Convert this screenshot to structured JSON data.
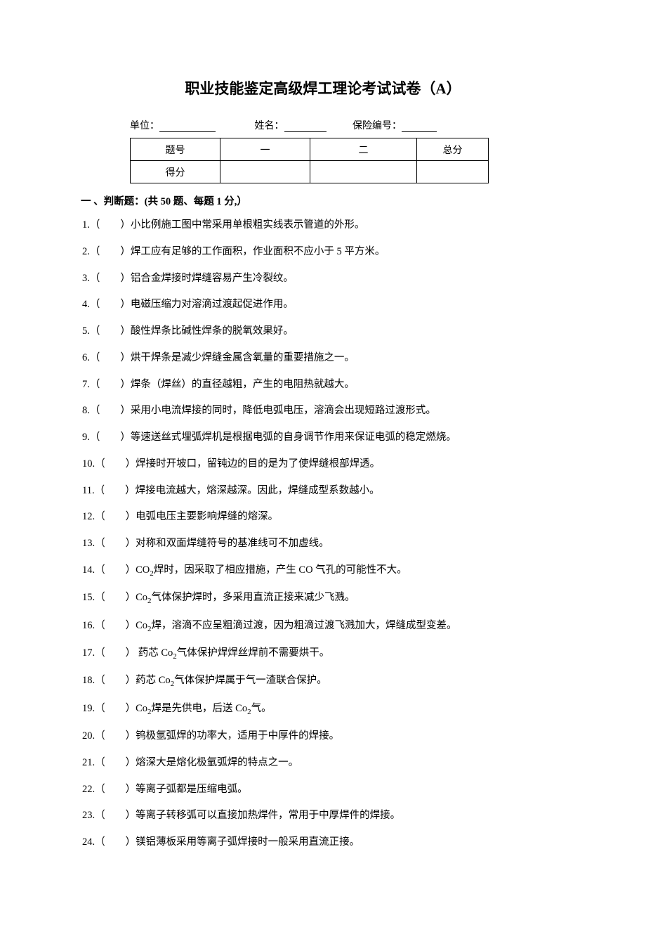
{
  "title": "职业技能鉴定高级焊工理论考试试卷（A）",
  "info": {
    "unit_label": "单位：",
    "name_label": "姓名：",
    "code_label": "保险编号："
  },
  "score_table": {
    "header_label": "题号",
    "score_label": "得分",
    "col1": "一",
    "col2": "二",
    "total": "总分"
  },
  "section1_header": "一 、判断题：(共 50 题、每题 1 分,）",
  "questions": [
    {
      "n": "1.",
      "text": "小比例施工图中常采用单根粗实线表示管道的外形。"
    },
    {
      "n": "2.",
      "text": "焊工应有足够的工作面积，作业面积不应小于 5 平方米。"
    },
    {
      "n": "3.",
      "text": "铝合金焊接时焊缝容易产生冷裂纹。"
    },
    {
      "n": "4.",
      "text": "电磁压缩力对溶滴过渡起促进作用。"
    },
    {
      "n": "5.",
      "text": "酸性焊条比碱性焊条的脱氧效果好。"
    },
    {
      "n": "6.",
      "text": "烘干焊条是减少焊缝金属含氧量的重要措施之一。"
    },
    {
      "n": "7.",
      "text": "焊条（焊丝）的直径越粗，产生的电阻热就越大。"
    },
    {
      "n": "8.",
      "text": "采用小电流焊接的同时，降低电弧电压，溶滴会出现短路过渡形式。"
    },
    {
      "n": "9.",
      "text": "等速送丝式埋弧焊机是根据电弧的自身调节作用来保证电弧的稳定燃烧。"
    },
    {
      "n": "10.",
      "text": "焊接时开坡口，留钝边的目的是为了使焊缝根部焊透。"
    },
    {
      "n": "11.",
      "text": "焊接电流越大，熔深越深。因此，焊缝成型系数越小。"
    },
    {
      "n": "12.",
      "text": "电弧电压主要影响焊缝的熔深。"
    },
    {
      "n": "13.",
      "text": "对称和双面焊缝符号的基准线可不加虚线。"
    },
    {
      "n": "14.",
      "text_pre": "CO",
      "sub": "2",
      "text_post": "焊时，因采取了相应措施，产生 CO 气孔的可能性不大。"
    },
    {
      "n": "15.",
      "text_pre": "Co",
      "sub": "2",
      "text_post": "气体保护焊时，多采用直流正接来减少飞溅。"
    },
    {
      "n": "16.",
      "text_pre": "Co",
      "sub": "2",
      "text_post": "焊，溶滴不应呈粗滴过渡，因为粗滴过渡飞溅加大，焊缝成型变差。"
    },
    {
      "n": "17.",
      "text_pre": " 药芯 Co",
      "sub": "2",
      "text_post": "气体保护焊焊丝焊前不需要烘干。"
    },
    {
      "n": "18.",
      "text_pre": "药芯 Co",
      "sub": "2",
      "text_post": "气体保护焊属于气一渣联合保护。"
    },
    {
      "n": "19.",
      "text_pre": "Co",
      "sub": "2",
      "text_mid": "焊是先供电，后送 Co",
      "sub2": "2",
      "text_post": "气。"
    },
    {
      "n": "20.",
      "text": "钨极氩弧焊的功率大，适用于中厚件的焊接。"
    },
    {
      "n": "21.",
      "text": "熔深大是熔化极氩弧焊的特点之一。"
    },
    {
      "n": "22.",
      "text": "等离子弧都是压缩电弧。"
    },
    {
      "n": "23.",
      "text": "等离子转移弧可以直接加热焊件，常用于中厚焊件的焊接。"
    },
    {
      "n": "24.",
      "text": "镁铝薄板采用等离子弧焊接时一般采用直流正接。"
    }
  ]
}
